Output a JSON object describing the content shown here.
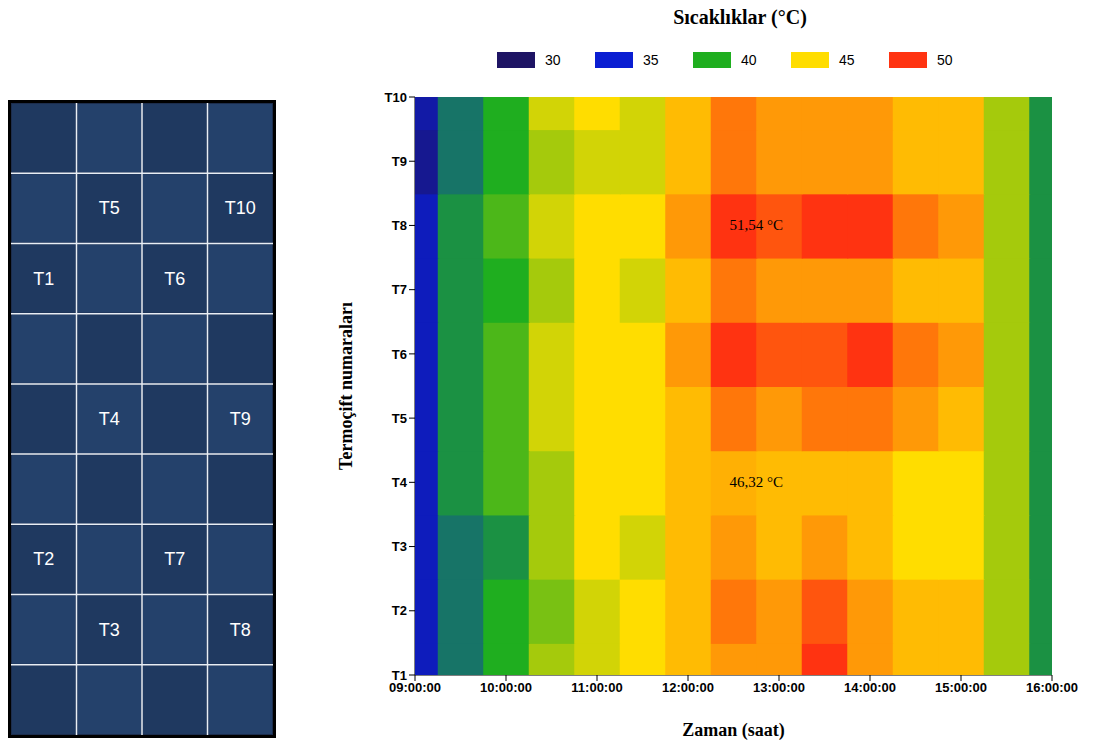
{
  "chart_data": {
    "type": "heatmap",
    "title": "Sıcaklıklar (°C)",
    "xlabel": "Zaman (saat)",
    "ylabel": "Termoçift numaraları",
    "x": [
      9,
      9.5,
      10,
      10.5,
      11,
      11.5,
      12,
      12.5,
      13,
      13.5,
      14,
      14.5,
      15,
      15.5,
      16
    ],
    "y": [
      1,
      2,
      3,
      4,
      5,
      6,
      7,
      8,
      9,
      10
    ],
    "cells": [
      [
        34,
        38,
        40,
        43,
        44,
        45,
        46,
        47,
        47,
        50,
        47,
        46,
        46,
        43,
        39
      ],
      [
        34,
        38,
        40,
        42,
        44,
        45,
        46,
        48,
        47,
        49,
        47,
        46,
        46,
        43,
        39
      ],
      [
        34,
        38,
        39,
        43,
        45,
        44,
        46,
        47,
        46,
        47,
        46,
        45,
        45,
        43,
        39
      ],
      [
        34,
        39,
        41,
        43,
        45,
        45,
        46,
        46.32,
        46,
        46,
        46,
        45,
        45,
        43,
        39
      ],
      [
        34,
        39,
        41,
        44,
        45,
        45,
        46,
        48,
        47,
        48,
        48,
        47,
        46,
        43,
        39
      ],
      [
        34,
        39,
        41,
        44,
        45,
        45,
        47,
        50.5,
        49,
        49,
        50,
        48,
        47,
        43,
        39
      ],
      [
        34,
        39,
        40,
        43,
        45,
        44,
        46,
        48,
        47,
        47,
        47,
        46,
        46,
        43,
        39
      ],
      [
        34,
        39,
        41,
        44,
        45,
        45,
        47,
        51.54,
        49,
        50,
        50,
        48,
        47,
        43,
        39
      ],
      [
        32,
        38,
        40,
        43,
        44,
        44,
        46,
        48,
        47,
        47,
        47,
        46,
        46,
        43,
        39
      ],
      [
        33,
        38,
        40,
        44,
        45,
        44,
        46,
        48,
        47,
        47,
        47,
        46,
        46,
        43,
        39
      ]
    ],
    "xlim": [
      9,
      16
    ],
    "xticks": [
      {
        "value": 9,
        "label": "09:00:00"
      },
      {
        "value": 10,
        "label": "10:00:00"
      },
      {
        "value": 11,
        "label": "11:00:00"
      },
      {
        "value": 12,
        "label": "12:00:00"
      },
      {
        "value": 13,
        "label": "13:00:00"
      },
      {
        "value": 14,
        "label": "14:00:00"
      },
      {
        "value": 15,
        "label": "15:00:00"
      },
      {
        "value": 16,
        "label": "16:00:00"
      }
    ],
    "ylim": [
      1,
      10
    ],
    "yticks": [
      {
        "value": 1,
        "label": "T1"
      },
      {
        "value": 2,
        "label": "T2"
      },
      {
        "value": 3,
        "label": "T3"
      },
      {
        "value": 4,
        "label": "T4"
      },
      {
        "value": 5,
        "label": "T5"
      },
      {
        "value": 6,
        "label": "T6"
      },
      {
        "value": 7,
        "label": "T7"
      },
      {
        "value": 8,
        "label": "T8"
      },
      {
        "value": 9,
        "label": "T9"
      },
      {
        "value": 10,
        "label": "T10"
      }
    ],
    "colorbar": {
      "ticks": [
        30,
        35,
        40,
        45,
        50
      ],
      "colors": [
        "#1e1464",
        "#0a1ed2",
        "#1fae1f",
        "#ffdd00",
        "#ff3311"
      ]
    },
    "annotations": [
      {
        "x": 12.75,
        "y": 8,
        "text": "51,54 °C"
      },
      {
        "x": 12.75,
        "y": 4,
        "text": "46,32 °C"
      }
    ],
    "grid": false,
    "panel": {
      "labels": [
        "T1",
        "T2",
        "T3",
        "T4",
        "T5",
        "T6",
        "T7",
        "T8",
        "T9",
        "T10"
      ]
    }
  }
}
